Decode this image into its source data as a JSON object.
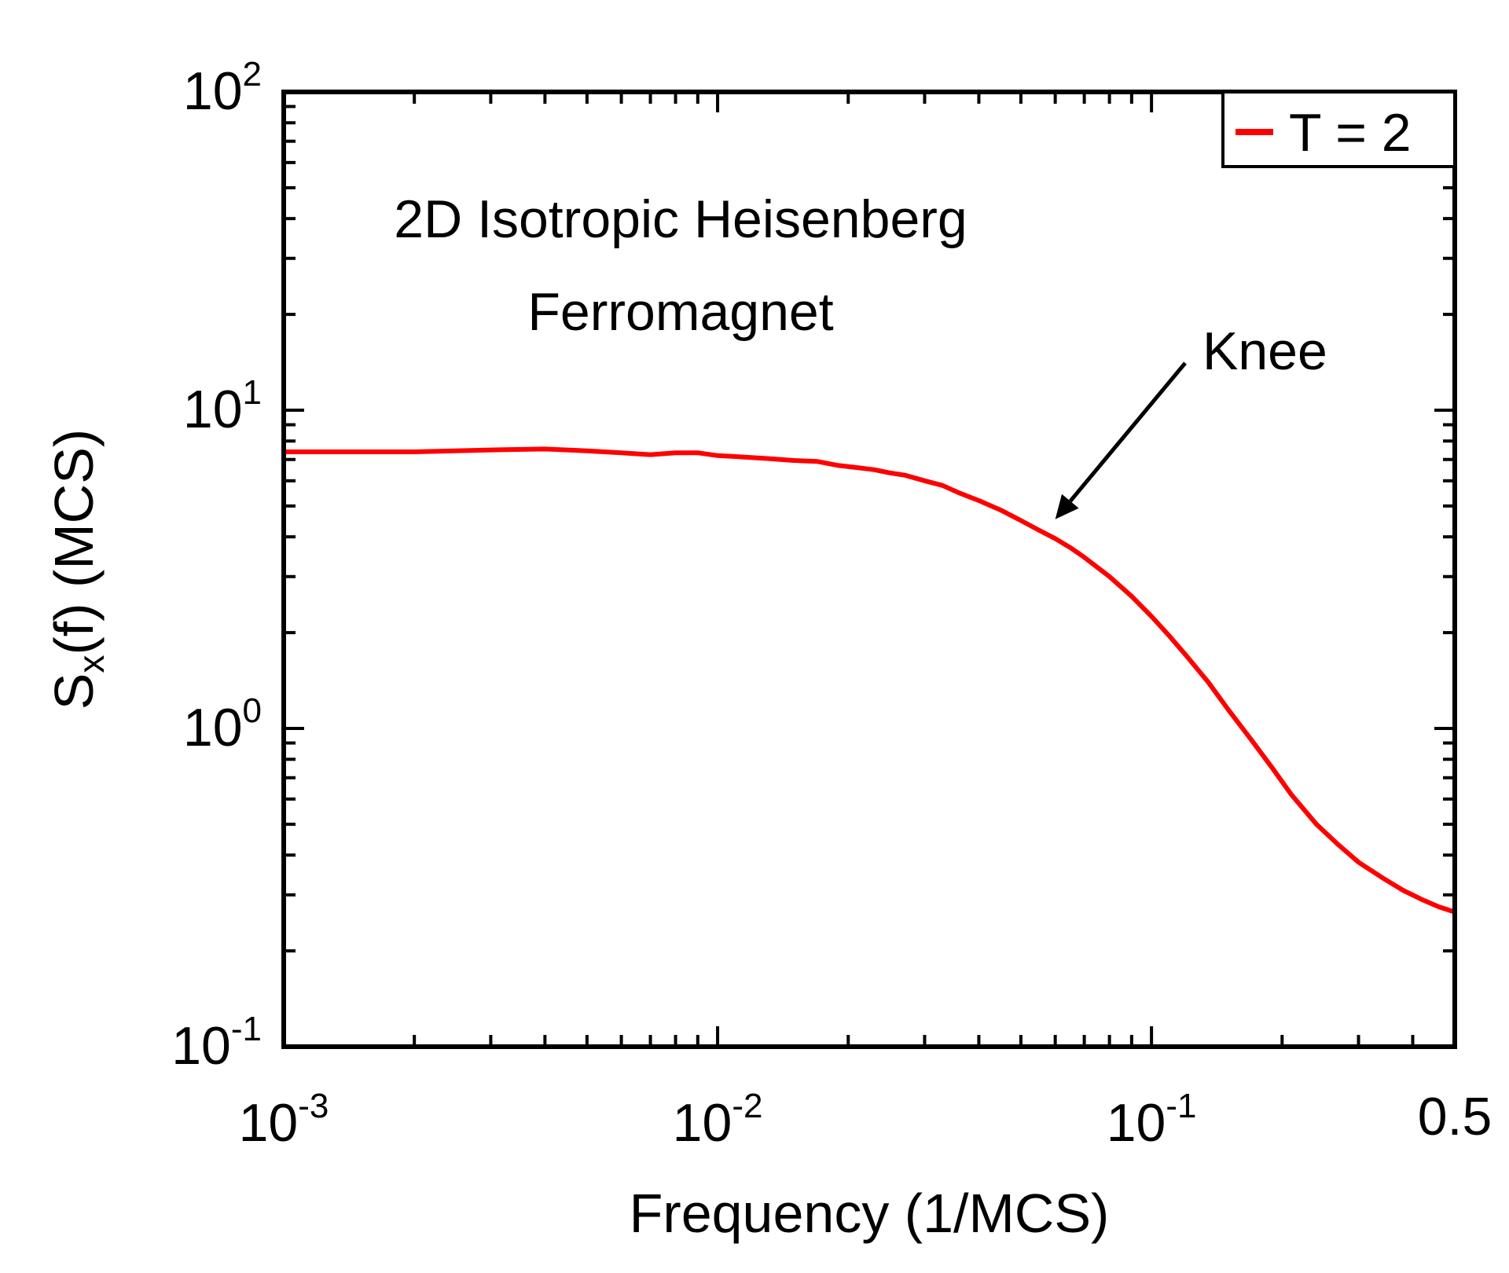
{
  "chart_data": {
    "type": "line",
    "xscale": "log",
    "yscale": "log",
    "xlim": [
      0.001,
      0.5
    ],
    "ylim": [
      0.1,
      100
    ],
    "xlabel": "Frequency (1/MCS)",
    "ylabel": {
      "base": "S",
      "sub": "x",
      "rest": "(f) (MCS)"
    },
    "x_ticks": [
      {
        "value": 0.001,
        "base": "10",
        "exp": "-3"
      },
      {
        "value": 0.01,
        "base": "10",
        "exp": "-2"
      },
      {
        "value": 0.1,
        "base": "10",
        "exp": "-1"
      },
      {
        "value": 0.5,
        "base": "0.5",
        "exp": ""
      }
    ],
    "y_ticks": [
      {
        "value": 0.1,
        "base": "10",
        "exp": "-1"
      },
      {
        "value": 1,
        "base": "10",
        "exp": "0"
      },
      {
        "value": 10,
        "base": "10",
        "exp": "1"
      },
      {
        "value": 100,
        "base": "10",
        "exp": "2"
      }
    ],
    "annotation": {
      "title_line1": "2D Isotropic Heisenberg",
      "title_line2": "Ferromagnet",
      "arrow_label": "Knee",
      "arrow_target": [
        0.06,
        4.7
      ]
    },
    "series": [
      {
        "name": "T = 2",
        "color": "#ff0000",
        "x": [
          0.001,
          0.002,
          0.003,
          0.004,
          0.005,
          0.006,
          0.007,
          0.008,
          0.009,
          0.01,
          0.011,
          0.013,
          0.015,
          0.017,
          0.019,
          0.021,
          0.023,
          0.025,
          0.027,
          0.03,
          0.033,
          0.036,
          0.04,
          0.045,
          0.05,
          0.055,
          0.06,
          0.065,
          0.07,
          0.08,
          0.09,
          0.1,
          0.11,
          0.12,
          0.135,
          0.15,
          0.17,
          0.19,
          0.21,
          0.24,
          0.27,
          0.3,
          0.34,
          0.38,
          0.42,
          0.46,
          0.5
        ],
        "y": [
          7.4,
          7.4,
          7.5,
          7.55,
          7.45,
          7.35,
          7.25,
          7.35,
          7.35,
          7.2,
          7.15,
          7.05,
          6.95,
          6.9,
          6.7,
          6.6,
          6.5,
          6.35,
          6.25,
          6.0,
          5.8,
          5.5,
          5.2,
          4.85,
          4.5,
          4.2,
          3.95,
          3.7,
          3.45,
          3.0,
          2.6,
          2.25,
          1.95,
          1.7,
          1.4,
          1.15,
          0.92,
          0.75,
          0.62,
          0.5,
          0.43,
          0.38,
          0.34,
          0.31,
          0.29,
          0.275,
          0.265
        ]
      }
    ],
    "legend": {
      "position": "top-right",
      "entries": [
        "T = 2"
      ]
    }
  }
}
